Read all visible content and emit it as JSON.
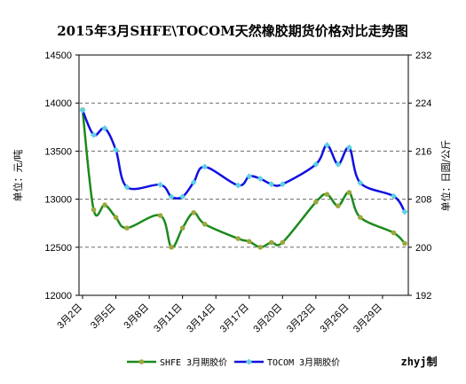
{
  "chart_data": {
    "type": "line",
    "title": "2015年3月SHFE\\TOCOM天然橡胶期货价格对比走势图",
    "ylabel_left": "单位：元/吨",
    "ylabel_right": "单位：日圆/公斤",
    "ylim_left": [
      12000,
      14500
    ],
    "ylim_right": [
      192,
      232
    ],
    "yticks_left": [
      "12000",
      "12500",
      "13000",
      "13500",
      "14000",
      "14500"
    ],
    "yticks_right": [
      "192",
      "200",
      "208",
      "216",
      "224",
      "232"
    ],
    "xticks": [
      "3月2日",
      "3月5日",
      "3月8日",
      "3月11日",
      "3月14日",
      "3月17日",
      "3月20日",
      "3月23日",
      "3月26日",
      "3月29日"
    ],
    "grid": true,
    "legend": "bottom",
    "credit": "zhyj制",
    "series": [
      {
        "name": "SHFE 3月期胶价",
        "color": "#1c8a1c",
        "marker_color": "#9aa83c",
        "axis": "left",
        "points": [
          [
            "3月2日",
            13930
          ],
          [
            "3月3日",
            12890
          ],
          [
            "3月4日",
            12940
          ],
          [
            "3月5日",
            12810
          ],
          [
            "3月6日",
            12700
          ],
          [
            "3月9日",
            12830
          ],
          [
            "3月10日",
            12500
          ],
          [
            "3月11日",
            12700
          ],
          [
            "3月12日",
            12860
          ],
          [
            "3月13日",
            12740
          ],
          [
            "3月16日",
            12590
          ],
          [
            "3月17日",
            12560
          ],
          [
            "3月18日",
            12500
          ],
          [
            "3月19日",
            12550
          ],
          [
            "3月20日",
            12550
          ],
          [
            "3月23日",
            12970
          ],
          [
            "3月24日",
            13050
          ],
          [
            "3月25日",
            12930
          ],
          [
            "3月26日",
            13070
          ],
          [
            "3月27日",
            12810
          ],
          [
            "3月30日",
            12650
          ],
          [
            "3月31日",
            12540
          ]
        ]
      },
      {
        "name": "TOCOM 3月期胶价",
        "color": "#1010e0",
        "marker_color": "#5fd0e8",
        "axis": "right",
        "points": [
          [
            "3月2日",
            222.8
          ],
          [
            "3月3日",
            218.7
          ],
          [
            "3月4日",
            219.8
          ],
          [
            "3月5日",
            216.2
          ],
          [
            "3月6日",
            210.0
          ],
          [
            "3月9日",
            210.4
          ],
          [
            "3月10日",
            208.4
          ],
          [
            "3月11日",
            208.4
          ],
          [
            "3月12日",
            210.8
          ],
          [
            "3月13日",
            213.4
          ],
          [
            "3月16日",
            210.3
          ],
          [
            "3月17日",
            211.8
          ],
          [
            "3月18日",
            211.4
          ],
          [
            "3月19日",
            210.5
          ],
          [
            "3月20日",
            210.5
          ],
          [
            "3月23日",
            213.8
          ],
          [
            "3月24日",
            217.0
          ],
          [
            "3月25日",
            213.8
          ],
          [
            "3月26日",
            216.6
          ],
          [
            "3月27日",
            210.7
          ],
          [
            "3月30日",
            208.5
          ],
          [
            "3月31日",
            205.9
          ]
        ]
      }
    ]
  }
}
